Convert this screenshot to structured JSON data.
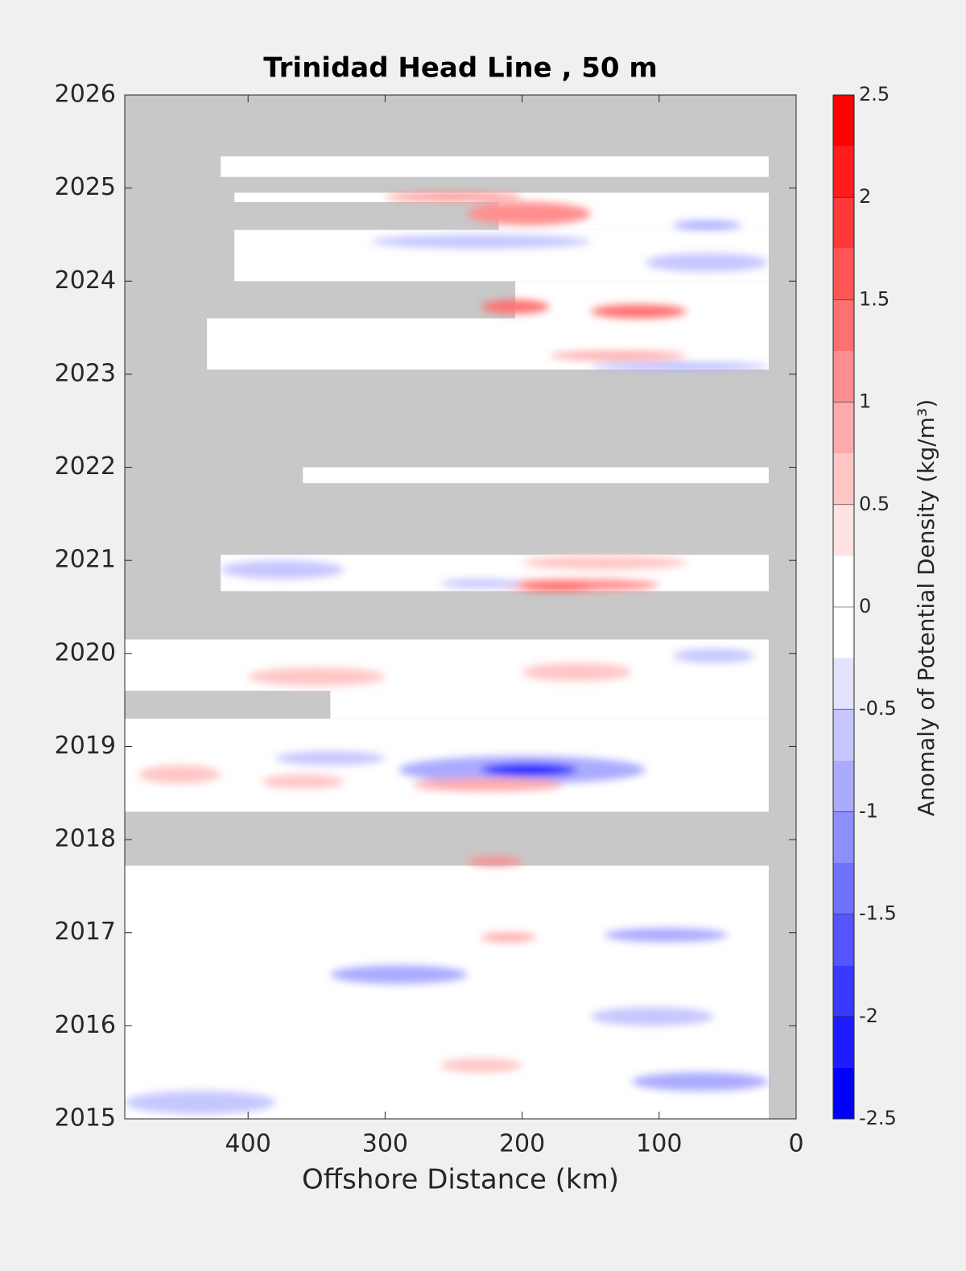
{
  "chart_data": {
    "type": "contour",
    "title": "Trinidad Head Line , 50 m",
    "x_label": "Offshore Distance (km)",
    "colorbar_label": "Anomaly of Potential Density (kg/m³)",
    "xlim": [
      490,
      0
    ],
    "xticks": [
      400,
      300,
      200,
      100,
      0
    ],
    "ylim": [
      2015,
      2026
    ],
    "yticks": [
      2015,
      2016,
      2017,
      2018,
      2019,
      2020,
      2021,
      2022,
      2023,
      2024,
      2025,
      2026
    ],
    "clim": [
      -2.5,
      2.5
    ],
    "cticks": [
      -2.5,
      -2,
      -1.5,
      -1,
      -0.5,
      0,
      0.5,
      1,
      1.5,
      2,
      2.5
    ],
    "level_step": 0.25,
    "no_data_color": "#c8c8c8",
    "coverage": [
      {
        "x": [
          490,
          20
        ],
        "y": [
          2015.0,
          2017.72
        ]
      },
      {
        "x": [
          490,
          20
        ],
        "y": [
          2018.3,
          2019.3
        ]
      },
      {
        "x": [
          340,
          20
        ],
        "y": [
          2019.3,
          2019.6
        ]
      },
      {
        "x": [
          490,
          20
        ],
        "y": [
          2019.6,
          2020.15
        ]
      },
      {
        "x": [
          420,
          20
        ],
        "y": [
          2020.67,
          2021.06
        ]
      },
      {
        "x": [
          360,
          20
        ],
        "y": [
          2021.83,
          2022.0
        ]
      },
      {
        "x": [
          430,
          20
        ],
        "y": [
          2023.05,
          2023.6
        ]
      },
      {
        "x": [
          205,
          20
        ],
        "y": [
          2023.6,
          2024.0
        ]
      },
      {
        "x": [
          410,
          20
        ],
        "y": [
          2024.0,
          2024.55
        ]
      },
      {
        "x": [
          217,
          20
        ],
        "y": [
          2024.55,
          2024.85
        ]
      },
      {
        "x": [
          410,
          20
        ],
        "y": [
          2024.85,
          2024.95
        ]
      },
      {
        "x": [
          420,
          20
        ],
        "y": [
          2025.12,
          2025.34
        ]
      }
    ],
    "anomalies": [
      {
        "x": [
          290,
          110
        ],
        "y": [
          2018.6,
          2018.9
        ],
        "value": -0.8
      },
      {
        "x": [
          230,
          160
        ],
        "y": [
          2018.68,
          2018.82
        ],
        "value": -2.0
      },
      {
        "x": [
          280,
          170
        ],
        "y": [
          2018.52,
          2018.66
        ],
        "value": 0.8
      },
      {
        "x": [
          480,
          420
        ],
        "y": [
          2018.6,
          2018.8
        ],
        "value": 0.6
      },
      {
        "x": [
          390,
          330
        ],
        "y": [
          2018.55,
          2018.7
        ],
        "value": 0.7
      },
      {
        "x": [
          380,
          300
        ],
        "y": [
          2018.8,
          2018.95
        ],
        "value": -0.6
      },
      {
        "x": [
          240,
          200
        ],
        "y": [
          2017.72,
          2017.82
        ],
        "value": 1.2
      },
      {
        "x": [
          230,
          190
        ],
        "y": [
          2016.9,
          2017.0
        ],
        "value": 0.9
      },
      {
        "x": [
          340,
          240
        ],
        "y": [
          2016.45,
          2016.65
        ],
        "value": -0.9
      },
      {
        "x": [
          140,
          50
        ],
        "y": [
          2016.9,
          2017.05
        ],
        "value": -0.8
      },
      {
        "x": [
          490,
          380
        ],
        "y": [
          2015.05,
          2015.3
        ],
        "value": -0.5
      },
      {
        "x": [
          120,
          20
        ],
        "y": [
          2015.3,
          2015.5
        ],
        "value": -0.8
      },
      {
        "x": [
          260,
          200
        ],
        "y": [
          2015.5,
          2015.65
        ],
        "value": 0.6
      },
      {
        "x": [
          150,
          60
        ],
        "y": [
          2016.0,
          2016.2
        ],
        "value": -0.6
      },
      {
        "x": [
          400,
          300
        ],
        "y": [
          2019.65,
          2019.85
        ],
        "value": 0.6
      },
      {
        "x": [
          200,
          120
        ],
        "y": [
          2019.7,
          2019.9
        ],
        "value": 0.5
      },
      {
        "x": [
          90,
          30
        ],
        "y": [
          2019.9,
          2020.05
        ],
        "value": -0.6
      },
      {
        "x": [
          220,
          100
        ],
        "y": [
          2020.67,
          2020.8
        ],
        "value": 1.0
      },
      {
        "x": [
          200,
          150
        ],
        "y": [
          2020.67,
          2020.74
        ],
        "value": 1.6
      },
      {
        "x": [
          200,
          80
        ],
        "y": [
          2020.9,
          2021.05
        ],
        "value": 0.7
      },
      {
        "x": [
          420,
          330
        ],
        "y": [
          2020.8,
          2021.0
        ],
        "value": -0.6
      },
      {
        "x": [
          260,
          200
        ],
        "y": [
          2020.7,
          2020.8
        ],
        "value": -0.7
      },
      {
        "x": [
          300,
          200
        ],
        "y": [
          2024.86,
          2024.95
        ],
        "value": 1.0
      },
      {
        "x": [
          240,
          150
        ],
        "y": [
          2024.6,
          2024.85
        ],
        "value": 1.0
      },
      {
        "x": [
          90,
          40
        ],
        "y": [
          2024.55,
          2024.65
        ],
        "value": -0.8
      },
      {
        "x": [
          110,
          20
        ],
        "y": [
          2024.1,
          2024.3
        ],
        "value": -0.6
      },
      {
        "x": [
          230,
          180
        ],
        "y": [
          2023.65,
          2023.8
        ],
        "value": 1.3
      },
      {
        "x": [
          150,
          80
        ],
        "y": [
          2023.6,
          2023.75
        ],
        "value": 1.4
      },
      {
        "x": [
          180,
          80
        ],
        "y": [
          2023.15,
          2023.25
        ],
        "value": 0.8
      },
      {
        "x": [
          150,
          20
        ],
        "y": [
          2023.05,
          2023.12
        ],
        "value": -0.8
      },
      {
        "x": [
          310,
          150
        ],
        "y": [
          2024.35,
          2024.5
        ],
        "value": -0.5
      }
    ]
  }
}
